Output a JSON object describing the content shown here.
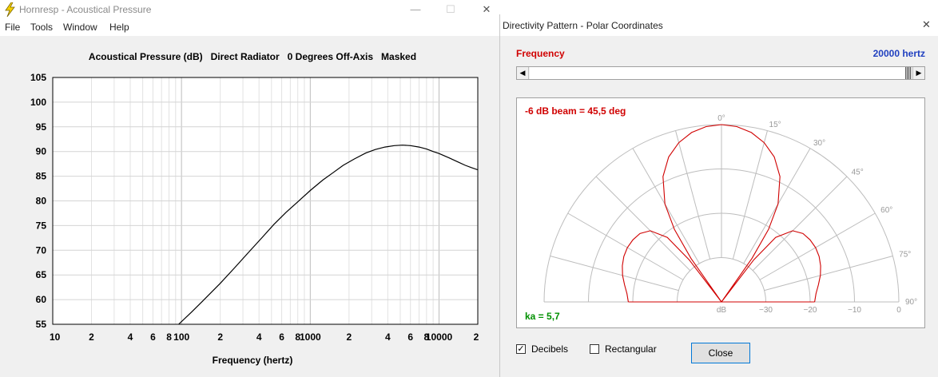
{
  "main_window": {
    "title": "Hornresp - Acoustical Pressure",
    "controls": {
      "minimize": "—",
      "maximize": "☐",
      "close": "✕"
    },
    "menu": [
      "File",
      "Tools",
      "Window",
      "Help"
    ]
  },
  "chart_data": {
    "type": "line",
    "title": "Acoustical Pressure (dB)   Direct Radiator   0 Degrees Off-Axis   Masked",
    "xlabel": "Frequency (hertz)",
    "ylabel": "",
    "xscale": "log",
    "xlim": [
      10,
      20000
    ],
    "ylim": [
      55,
      105
    ],
    "grid": true,
    "xtick_labels": [
      {
        "v": 10,
        "t": "10"
      },
      {
        "v": 20,
        "t": "2"
      },
      {
        "v": 40,
        "t": "4"
      },
      {
        "v": 60,
        "t": "6"
      },
      {
        "v": 80,
        "t": "8"
      },
      {
        "v": 100,
        "t": "100"
      },
      {
        "v": 200,
        "t": "2"
      },
      {
        "v": 400,
        "t": "4"
      },
      {
        "v": 600,
        "t": "6"
      },
      {
        "v": 800,
        "t": "8"
      },
      {
        "v": 1000,
        "t": "1000"
      },
      {
        "v": 2000,
        "t": "2"
      },
      {
        "v": 4000,
        "t": "4"
      },
      {
        "v": 6000,
        "t": "6"
      },
      {
        "v": 8000,
        "t": "8"
      },
      {
        "v": 10000,
        "t": "10000"
      },
      {
        "v": 20000,
        "t": "2"
      }
    ],
    "yticks": [
      "55",
      "60",
      "65",
      "70",
      "75",
      "80",
      "85",
      "90",
      "95",
      "100",
      "105"
    ],
    "series": [
      {
        "color": "#000000",
        "x": [
          95,
          120,
          150,
          200,
          260,
          330,
          420,
          520,
          650,
          800,
          1000,
          1250,
          1500,
          1800,
          2200,
          2700,
          3200,
          3800,
          4500,
          5200,
          6000,
          7000,
          8000,
          9000,
          10000,
          12000,
          14000,
          16000,
          18000,
          20000
        ],
        "y": [
          55.0,
          57.5,
          60.0,
          63.3,
          66.5,
          69.5,
          72.5,
          75.2,
          77.7,
          79.8,
          82.1,
          84.2,
          85.7,
          87.2,
          88.5,
          89.7,
          90.4,
          90.9,
          91.2,
          91.3,
          91.2,
          90.9,
          90.5,
          90.0,
          89.6,
          88.7,
          87.9,
          87.2,
          86.7,
          86.3
        ]
      }
    ]
  },
  "directivity_window": {
    "title": "Directivity Pattern - Polar Coordinates",
    "close": "✕",
    "frequency_label": "Frequency",
    "frequency_value": "20000 hertz",
    "slider": {
      "position": 1.0,
      "left_arrow": "◀",
      "right_arrow": "▶"
    },
    "beam_label": "-6 dB beam = 45,5 deg",
    "ka_label": "ka = 5,7",
    "polar": {
      "angle_labels": [
        "0°",
        "15°",
        "30°",
        "45°",
        "60°",
        "75°",
        "90°"
      ],
      "radial_labels": [
        "dB",
        "−30",
        "−20",
        "−10",
        "0"
      ],
      "pattern_color": "#d00000",
      "pattern_db": [
        [
          0,
          0
        ],
        [
          5,
          -0.3
        ],
        [
          10,
          -1.2
        ],
        [
          15,
          -2.8
        ],
        [
          20,
          -5.2
        ],
        [
          25,
          -8.8
        ],
        [
          30,
          -14.5
        ],
        [
          33,
          -20.5
        ],
        [
          35,
          -28
        ],
        [
          36.3,
          -40
        ],
        [
          37.5,
          -28
        ],
        [
          40,
          -21
        ],
        [
          45,
          -17.3
        ],
        [
          50,
          -16.0
        ],
        [
          55,
          -15.6
        ],
        [
          60,
          -15.5
        ],
        [
          65,
          -15.7
        ],
        [
          70,
          -16.2
        ],
        [
          75,
          -16.9
        ],
        [
          80,
          -17.8
        ],
        [
          85,
          -18.6
        ],
        [
          90,
          -19.0
        ]
      ]
    },
    "checkboxes": [
      {
        "label": "Decibels",
        "checked": true,
        "mark": "✓"
      },
      {
        "label": "Rectangular",
        "checked": false,
        "mark": ""
      }
    ],
    "close_button": "Close"
  }
}
